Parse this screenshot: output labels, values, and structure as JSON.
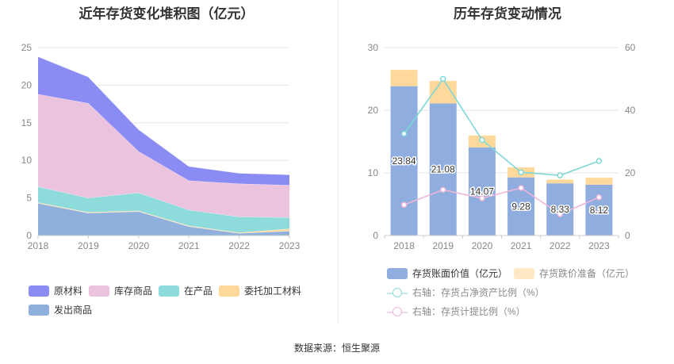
{
  "left_chart": {
    "title": "近年存货变化堆积图（亿元）"
  },
  "right_chart": {
    "title": "历年存货变动情况"
  },
  "source_text": "数据来源：恒生聚源",
  "chart_data": [
    {
      "type": "area",
      "title": "近年存货变化堆积图（亿元）",
      "categories": [
        "2018",
        "2019",
        "2020",
        "2021",
        "2022",
        "2023"
      ],
      "stacked": true,
      "ylim": [
        0,
        25
      ],
      "yticks": [
        0,
        5,
        10,
        15,
        20,
        25
      ],
      "grid": true,
      "legend_position": "bottom",
      "series": [
        {
          "name": "发出商品",
          "color": "#8fb0dc",
          "values": [
            4.3,
            3.0,
            3.2,
            1.2,
            0.3,
            0.6
          ]
        },
        {
          "name": "委托加工材料",
          "color": "#ffd89a",
          "values": [
            0.1,
            0.1,
            0.1,
            0.1,
            0.1,
            0.3
          ]
        },
        {
          "name": "在产品",
          "color": "#8ddbdb",
          "values": [
            2.1,
            1.9,
            2.4,
            2.1,
            2.1,
            1.5
          ]
        },
        {
          "name": "库存商品",
          "color": "#ecc3de",
          "values": [
            12.3,
            12.6,
            5.5,
            3.9,
            4.4,
            4.3
          ]
        },
        {
          "name": "原材料",
          "color": "#8b8cf3",
          "values": [
            5.0,
            3.5,
            2.9,
            1.9,
            1.4,
            1.4
          ]
        }
      ]
    },
    {
      "type": "bar",
      "title": "历年存货变动情况",
      "categories": [
        "2018",
        "2019",
        "2020",
        "2021",
        "2022",
        "2023"
      ],
      "stacked": true,
      "ylim": [
        0,
        30
      ],
      "yticks": [
        0,
        10,
        20,
        30
      ],
      "y2lim": [
        0,
        60
      ],
      "y2ticks": [
        0,
        20,
        40,
        60
      ],
      "grid": true,
      "legend_position": "bottom",
      "series": [
        {
          "name": "存货账面价值（亿元）",
          "color": "#8fadde",
          "values": [
            23.84,
            21.08,
            14.07,
            9.28,
            8.33,
            8.12
          ],
          "labels": [
            "23.84",
            "21.08",
            "14.07",
            "9.28",
            "8.33",
            "8.12"
          ]
        },
        {
          "name": "存货跌价准备（亿元）",
          "color": "#ffd99b",
          "values": [
            2.6,
            3.6,
            1.9,
            1.6,
            0.6,
            1.1
          ]
        }
      ],
      "line_series": [
        {
          "name": "右轴：存货占净资产比例（%）",
          "color": "#7fd6d6",
          "axis": "right",
          "values": [
            32.5,
            50.0,
            30.5,
            20.2,
            19.2,
            23.8
          ]
        },
        {
          "name": "右轴：存货计提比例（%）",
          "color": "#f0b6d8",
          "axis": "right",
          "values": [
            9.8,
            14.6,
            11.9,
            15.2,
            6.8,
            12.2
          ]
        }
      ]
    }
  ]
}
